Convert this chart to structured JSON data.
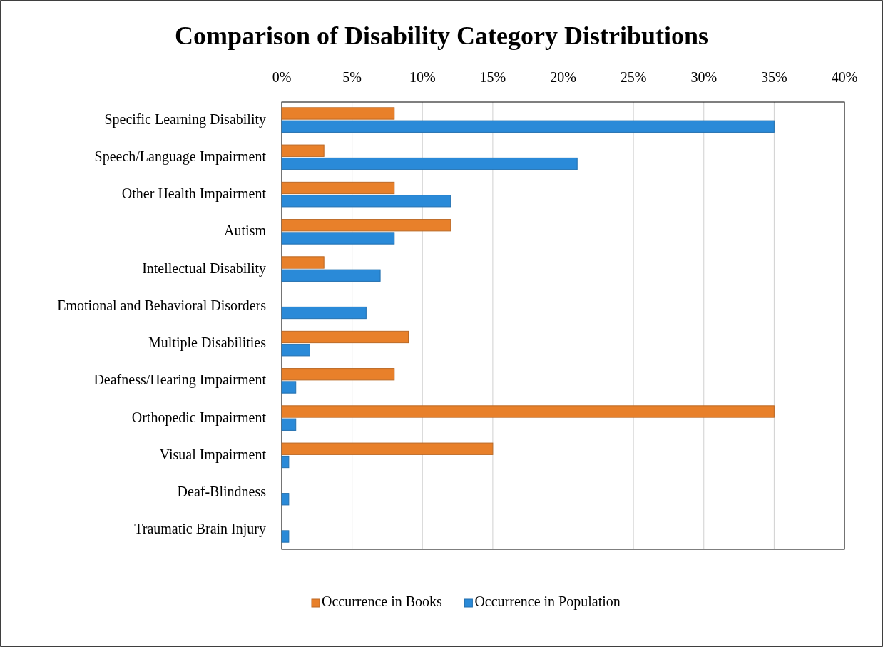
{
  "chart_data": {
    "type": "bar",
    "orientation": "horizontal",
    "title": "Comparison of Disability Category Distributions",
    "categories": [
      "Specific Learning Disability",
      "Speech/Language Impairment",
      "Other Health Impairment",
      "Autism",
      "Intellectual Disability",
      "Emotional and Behavioral Disorders",
      "Multiple Disabilities",
      "Deafness/Hearing Impairment",
      "Orthopedic Impairment",
      "Visual Impairment",
      "Deaf-Blindness",
      "Traumatic Brain Injury"
    ],
    "series": [
      {
        "name": "Occurrence in Books",
        "color": "#e8802a",
        "values": [
          8,
          3,
          8,
          12,
          3,
          0,
          9,
          8,
          35,
          15,
          0,
          0
        ]
      },
      {
        "name": "Occurrence in Population",
        "color": "#2a8ad8",
        "values": [
          35,
          21,
          12,
          8,
          7,
          6,
          2,
          1,
          1,
          0.5,
          0.5,
          0.5
        ]
      }
    ],
    "xlim": [
      0,
      40
    ],
    "xticks": [
      {
        "value": 0,
        "label": "0%"
      },
      {
        "value": 5,
        "label": "5%"
      },
      {
        "value": 10,
        "label": "10%"
      },
      {
        "value": 15,
        "label": "15%"
      },
      {
        "value": 20,
        "label": "20%"
      },
      {
        "value": 25,
        "label": "25%"
      },
      {
        "value": 30,
        "label": "30%"
      },
      {
        "value": 35,
        "label": "35%"
      },
      {
        "value": 40,
        "label": "40%"
      }
    ],
    "grid": "x",
    "legend": "bottom"
  }
}
